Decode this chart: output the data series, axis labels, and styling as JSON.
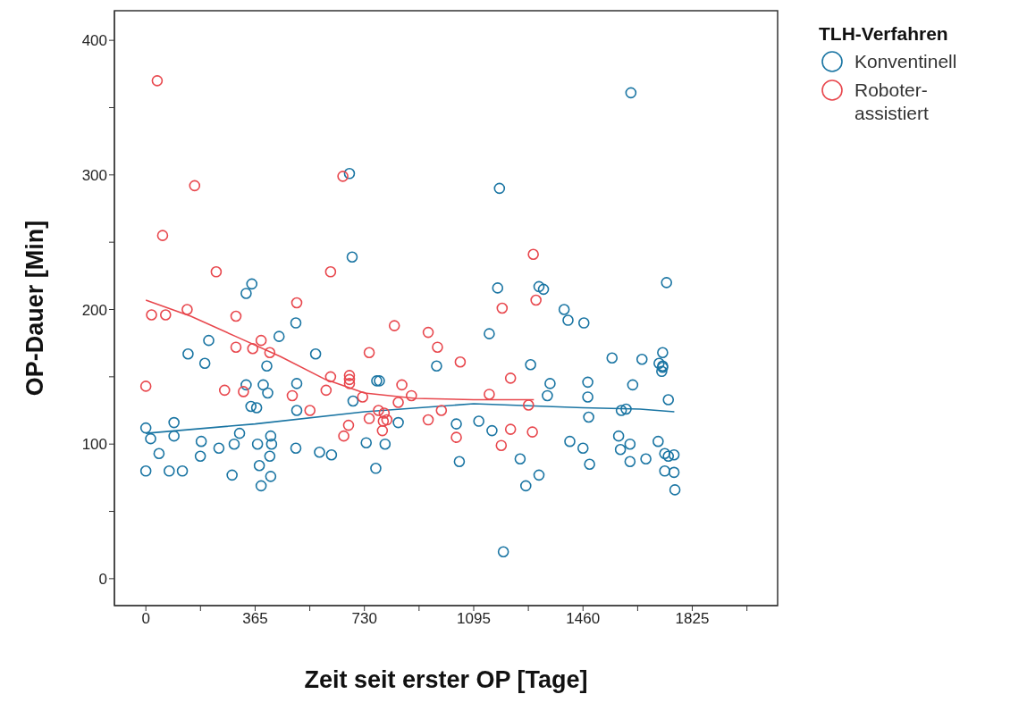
{
  "chart_data": {
    "type": "scatter",
    "xlabel": "Zeit seit erster OP [Tage]",
    "ylabel": "OP-Dauer [Min]",
    "legend_title": "TLH-Verfahren",
    "legend": "top right",
    "marker": "circle",
    "xlim": [
      -105,
      2110
    ],
    "ylim": [
      -20,
      422
    ],
    "xticks": [
      0,
      {
        "value": 182.5,
        "label": null
      },
      365,
      {
        "value": 547.5,
        "label": null
      },
      730,
      {
        "value": 912.5,
        "label": null
      },
      1095,
      {
        "value": 1277.5,
        "label": null
      },
      1460,
      {
        "value": 1642.5,
        "label": null
      },
      1825,
      {
        "value": 2007.5,
        "label": null
      }
    ],
    "yticks": [
      0,
      {
        "value": 50,
        "label": null
      },
      100,
      {
        "value": 150,
        "label": null
      },
      200,
      {
        "value": 250,
        "label": null
      },
      300,
      {
        "value": 350,
        "label": null
      },
      400
    ],
    "series": [
      {
        "name": "Konventinell",
        "color": "#1a75a3",
        "x": [
          0,
          0,
          16,
          44,
          78,
          94,
          94,
          122,
          141,
          182,
          185,
          197,
          210,
          244,
          288,
          295,
          313,
          335,
          335,
          351,
          354,
          370,
          373,
          379,
          385,
          392,
          404,
          407,
          414,
          417,
          417,
          420,
          445,
          501,
          504,
          504,
          501,
          567,
          580,
          620,
          680,
          689,
          692,
          736,
          768,
          771,
          780,
          799,
          843,
          971,
          1037,
          1047,
          1112,
          1147,
          1156,
          1175,
          1181,
          1194,
          1250,
          1269,
          1285,
          1313,
          1313,
          1328,
          1341,
          1350,
          1397,
          1410,
          1416,
          1460,
          1463,
          1476,
          1476,
          1479,
          1482,
          1557,
          1579,
          1585,
          1588,
          1604,
          1617,
          1617,
          1620,
          1626,
          1657,
          1670,
          1711,
          1714,
          1723,
          1726,
          1726,
          1726,
          1733,
          1733,
          1739,
          1745,
          1745,
          1764,
          1764,
          1767
        ],
        "values": [
          112,
          80,
          104,
          93,
          80,
          116,
          106,
          80,
          167,
          91,
          102,
          160,
          177,
          97,
          77,
          100,
          108,
          212,
          144,
          128,
          219,
          127,
          100,
          84,
          69,
          144,
          158,
          138,
          91,
          76,
          106,
          100,
          180,
          190,
          145,
          125,
          97,
          167,
          94,
          92,
          301,
          239,
          132,
          101,
          82,
          147,
          147,
          100,
          116,
          158,
          115,
          87,
          117,
          182,
          110,
          216,
          290,
          20,
          89,
          69,
          159,
          217,
          77,
          215,
          136,
          145,
          200,
          192,
          102,
          97,
          190,
          146,
          135,
          120,
          85,
          164,
          106,
          96,
          125,
          126,
          100,
          87,
          361,
          144,
          163,
          89,
          102,
          160,
          154,
          168,
          158,
          157,
          93,
          80,
          220,
          133,
          91,
          92,
          79,
          66
        ]
      },
      {
        "name": "Roboter-assistiert",
        "color": "#e8474d",
        "x": [
          0,
          19,
          38,
          56,
          66,
          138,
          163,
          235,
          263,
          301,
          301,
          326,
          357,
          385,
          414,
          489,
          504,
          548,
          602,
          617,
          617,
          658,
          661,
          677,
          680,
          680,
          680,
          724,
          746,
          746,
          777,
          790,
          793,
          796,
          805,
          830,
          843,
          855,
          887,
          943,
          943,
          974,
          987,
          1037,
          1050,
          1147,
          1187,
          1190,
          1218,
          1218,
          1278,
          1291,
          1294,
          1303
        ],
        "values": [
          143,
          196,
          370,
          255,
          196,
          200,
          292,
          228,
          140,
          195,
          172,
          139,
          171,
          177,
          168,
          136,
          205,
          125,
          140,
          150,
          228,
          299,
          106,
          114,
          151,
          148,
          145,
          135,
          168,
          119,
          125,
          110,
          117,
          123,
          118,
          188,
          131,
          144,
          136,
          183,
          118,
          172,
          125,
          105,
          161,
          137,
          99,
          201,
          149,
          111,
          129,
          109,
          241,
          207
        ]
      },
      {
        "type": "line",
        "marker": "none",
        "color": "#1a75a3",
        "x": [
          0,
          365,
          730,
          1095,
          1460,
          1650,
          1765
        ],
        "values": [
          108,
          115,
          124,
          130,
          127,
          126,
          124
        ]
      },
      {
        "type": "line",
        "marker": "none",
        "color": "#e8474d",
        "x": [
          0,
          150,
          300,
          450,
          600,
          730,
          900,
          1095,
          1296
        ],
        "values": [
          207,
          195,
          180,
          165,
          148,
          138,
          134,
          133,
          133
        ]
      }
    ]
  }
}
